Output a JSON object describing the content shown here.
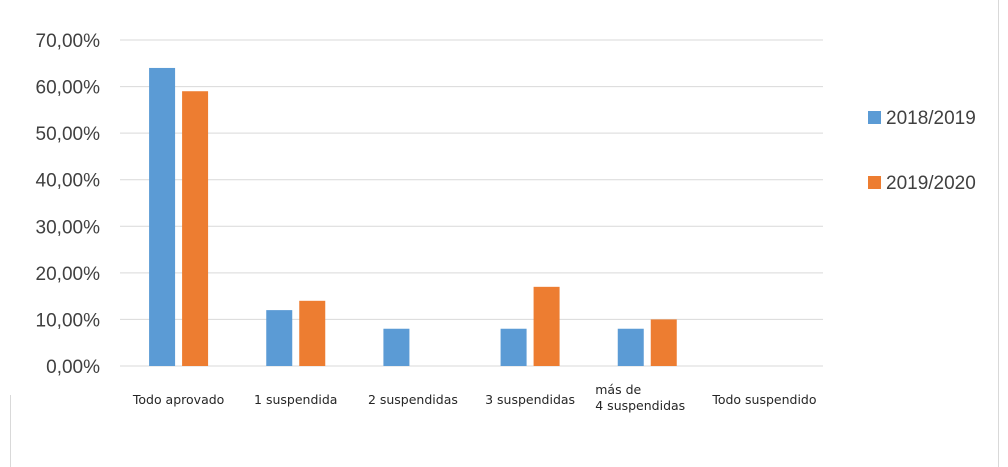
{
  "chart_data": {
    "type": "bar",
    "title": "",
    "xlabel": "",
    "ylabel": "",
    "categories": [
      [
        "Todo aprovado"
      ],
      [
        "1 suspendida"
      ],
      [
        "2 suspendidas"
      ],
      [
        "3 suspendidas"
      ],
      [
        "más de",
        "4 suspendidas"
      ],
      [
        "Todo suspendido"
      ]
    ],
    "series": [
      {
        "name": "2018/2019",
        "color": "#5b9bd5",
        "values": [
          64,
          12,
          8,
          8,
          8,
          0
        ]
      },
      {
        "name": "2019/2020",
        "color": "#ed7d31",
        "values": [
          59,
          14,
          0,
          17,
          10,
          0
        ]
      }
    ],
    "ylim": [
      0,
      70
    ],
    "yticks": [
      "0,00%",
      "10,00%",
      "20,00%",
      "30,00%",
      "40,00%",
      "50,00%",
      "60,00%",
      "70,00%"
    ],
    "grid": true,
    "legend_position": "right"
  }
}
